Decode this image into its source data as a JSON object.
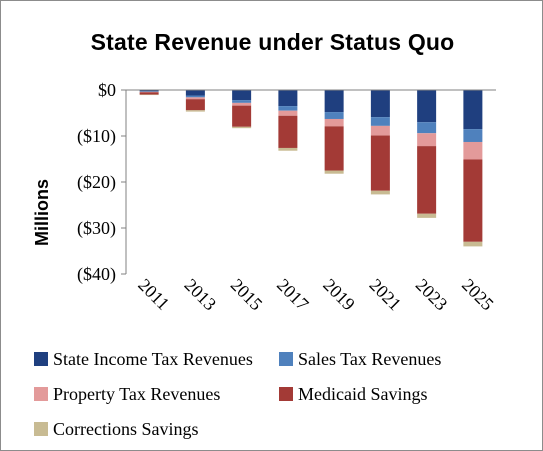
{
  "chart_data": {
    "type": "bar",
    "stacked": true,
    "title": "State Revenue under Status Quo",
    "ylabel": "Millions",
    "xlabel": "",
    "categories": [
      "2011",
      "2013",
      "2015",
      "2017",
      "2019",
      "2021",
      "2023",
      "2025"
    ],
    "ylim": [
      -40,
      0
    ],
    "yticks": [
      0,
      -10,
      -20,
      -30,
      -40
    ],
    "ytick_labels": [
      "$0",
      "($10)",
      "($20)",
      "($30)",
      "($40)"
    ],
    "grid": false,
    "legend_position": "bottom",
    "series": [
      {
        "name": "State Income Tax Revenues",
        "color": "#1f3f7f",
        "values": [
          -0.3,
          -1.2,
          -2.2,
          -3.5,
          -4.8,
          -5.9,
          -7.0,
          -8.5
        ]
      },
      {
        "name": "Sales Tax Revenues",
        "color": "#4f81bd",
        "values": [
          -0.1,
          -0.4,
          -0.6,
          -1.0,
          -1.5,
          -1.9,
          -2.4,
          -2.8
        ]
      },
      {
        "name": "Property Tax Revenues",
        "color": "#e39a9a",
        "values": [
          -0.1,
          -0.4,
          -0.6,
          -1.1,
          -1.6,
          -2.1,
          -2.8,
          -3.8
        ]
      },
      {
        "name": "Medicaid Savings",
        "color": "#a33a36",
        "values": [
          -0.5,
          -2.4,
          -4.6,
          -7.0,
          -9.6,
          -12.0,
          -14.7,
          -17.9
        ]
      },
      {
        "name": "Corrections Savings",
        "color": "#c8bb93",
        "values": [
          -0.1,
          -0.3,
          -0.3,
          -0.6,
          -0.7,
          -0.8,
          -0.9,
          -1.0
        ]
      }
    ]
  }
}
